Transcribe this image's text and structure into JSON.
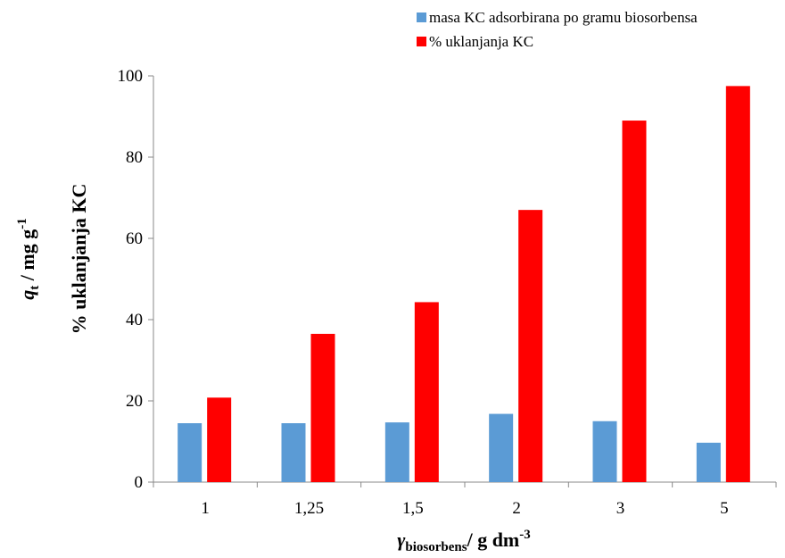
{
  "chart_data": {
    "type": "bar",
    "categories": [
      "1",
      "1,25",
      "1,5",
      "2",
      "3",
      "5"
    ],
    "series": [
      {
        "name": "masa KC adsorbirana po gramu biosorbensa",
        "color": "#5b9bd5",
        "values": [
          14.5,
          14.5,
          14.7,
          16.8,
          15,
          9.7
        ]
      },
      {
        "name": "% uklanjanja KC",
        "color": "#ff0000",
        "values": [
          20.8,
          36.5,
          44.3,
          67,
          89,
          97.5
        ]
      }
    ],
    "ylim": [
      0,
      100
    ],
    "yticks": [
      0,
      20,
      40,
      60,
      80,
      100
    ],
    "y_label": {
      "symbol": "q",
      "subscript": "t",
      "unit": " / mg g",
      "superscript": "-1",
      "line2": "% uklanjanja KC"
    },
    "x_label": {
      "symbol": "γ",
      "subscript": "biosorbens",
      "unit": "/ g dm",
      "superscript": "-3"
    },
    "legend": "top-right"
  }
}
